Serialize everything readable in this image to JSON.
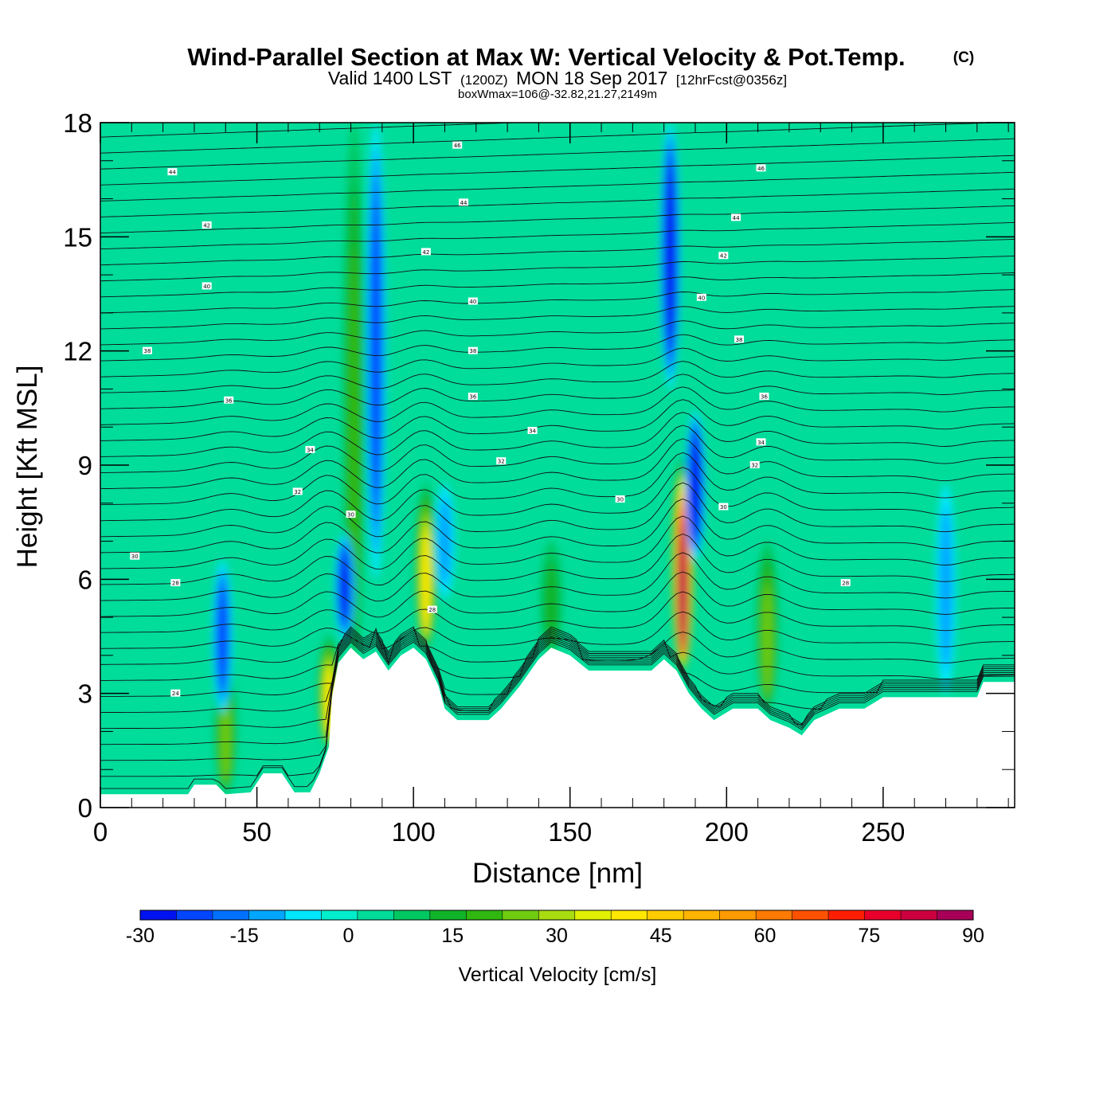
{
  "header": {
    "title": "Wind-Parallel Section at Max W: Vertical Velocity & Pot.Temp.",
    "copyright": "(C)",
    "valid_prefix": "Valid 1400 LST",
    "valid_utc": "(1200Z)",
    "valid_date": "MON 18 Sep 2017",
    "forecast": "[12hrFcst@0356z]",
    "box_note": "boxWmax=106@-32.82,21.27,2149m"
  },
  "chart_data": {
    "type": "heatmap",
    "xlabel": "Distance [nm]",
    "ylabel": "Height [Kft MSL]",
    "xlim": [
      0,
      292
    ],
    "ylim": [
      0,
      18
    ],
    "x_ticks": [
      0,
      50,
      100,
      150,
      200,
      250
    ],
    "y_ticks": [
      0,
      3,
      6,
      9,
      12,
      15,
      18
    ],
    "background_level": 0,
    "updrafts": [
      {
        "x": 40,
        "bottom": 0.4,
        "top": 3.8,
        "peak": 22
      },
      {
        "x": 73,
        "bottom": 1.6,
        "top": 4.5,
        "peak": 35
      },
      {
        "x": 81,
        "bottom": 3.8,
        "top": 18,
        "peak": 15
      },
      {
        "x": 104,
        "bottom": 4.2,
        "top": 8.5,
        "peak": 36
      },
      {
        "x": 144,
        "bottom": 4.0,
        "top": 7.0,
        "peak": 12
      },
      {
        "x": 186,
        "bottom": 3.6,
        "top": 9.2,
        "peak": 80
      },
      {
        "x": 213,
        "bottom": 2.6,
        "top": 7.0,
        "peak": 22
      }
    ],
    "downdrafts": [
      {
        "x": 39,
        "bottom": 2.5,
        "top": 6.5,
        "peak": -20
      },
      {
        "x": 78,
        "bottom": 4.4,
        "top": 7.2,
        "peak": -25
      },
      {
        "x": 88,
        "bottom": 6.0,
        "top": 18,
        "peak": -24
      },
      {
        "x": 110,
        "bottom": 5.5,
        "top": 8.5,
        "peak": -14
      },
      {
        "x": 182,
        "bottom": 11,
        "top": 18,
        "peak": -30
      },
      {
        "x": 190,
        "bottom": 6.5,
        "top": 10.4,
        "peak": -30
      },
      {
        "x": 270,
        "bottom": 3.0,
        "top": 8.5,
        "peak": -14
      }
    ],
    "terrain": [
      [
        0,
        0.35
      ],
      [
        28,
        0.35
      ],
      [
        30,
        0.6
      ],
      [
        37,
        0.6
      ],
      [
        40,
        0.35
      ],
      [
        48,
        0.4
      ],
      [
        52,
        0.9
      ],
      [
        58,
        0.9
      ],
      [
        62,
        0.4
      ],
      [
        67,
        0.4
      ],
      [
        70,
        0.9
      ],
      [
        73,
        1.6
      ],
      [
        74,
        2.9
      ],
      [
        76,
        3.8
      ],
      [
        80,
        4.2
      ],
      [
        84,
        3.9
      ],
      [
        88,
        4.1
      ],
      [
        92,
        3.6
      ],
      [
        96,
        4.0
      ],
      [
        100,
        4.2
      ],
      [
        104,
        3.9
      ],
      [
        108,
        3.2
      ],
      [
        110,
        2.6
      ],
      [
        114,
        2.3
      ],
      [
        124,
        2.3
      ],
      [
        128,
        2.6
      ],
      [
        134,
        3.2
      ],
      [
        140,
        3.9
      ],
      [
        144,
        4.2
      ],
      [
        150,
        4.0
      ],
      [
        156,
        3.6
      ],
      [
        176,
        3.6
      ],
      [
        180,
        3.9
      ],
      [
        184,
        3.6
      ],
      [
        188,
        3.0
      ],
      [
        192,
        2.6
      ],
      [
        196,
        2.3
      ],
      [
        202,
        2.6
      ],
      [
        210,
        2.6
      ],
      [
        214,
        2.3
      ],
      [
        220,
        2.1
      ],
      [
        224,
        1.9
      ],
      [
        228,
        2.3
      ],
      [
        236,
        2.6
      ],
      [
        244,
        2.6
      ],
      [
        250,
        2.9
      ],
      [
        280,
        2.9
      ],
      [
        282,
        3.3
      ],
      [
        292,
        3.3
      ]
    ],
    "theta_labels": [
      {
        "x": 23,
        "y": 16.7,
        "text": "44"
      },
      {
        "x": 34,
        "y": 15.3,
        "text": "42"
      },
      {
        "x": 34,
        "y": 13.7,
        "text": "40"
      },
      {
        "x": 15,
        "y": 12.0,
        "text": "38"
      },
      {
        "x": 41,
        "y": 10.7,
        "text": "36"
      },
      {
        "x": 67,
        "y": 9.4,
        "text": "34"
      },
      {
        "x": 63,
        "y": 8.3,
        "text": "32"
      },
      {
        "x": 11,
        "y": 6.6,
        "text": "30"
      },
      {
        "x": 24,
        "y": 5.9,
        "text": "28"
      },
      {
        "x": 24,
        "y": 3.0,
        "text": "24"
      },
      {
        "x": 80,
        "y": 7.7,
        "text": "30"
      },
      {
        "x": 106,
        "y": 5.2,
        "text": "28"
      },
      {
        "x": 114,
        "y": 17.4,
        "text": "46"
      },
      {
        "x": 116,
        "y": 15.9,
        "text": "44"
      },
      {
        "x": 104,
        "y": 14.6,
        "text": "42"
      },
      {
        "x": 119,
        "y": 13.3,
        "text": "40"
      },
      {
        "x": 119,
        "y": 12.0,
        "text": "38"
      },
      {
        "x": 119,
        "y": 10.8,
        "text": "36"
      },
      {
        "x": 138,
        "y": 9.9,
        "text": "34"
      },
      {
        "x": 128,
        "y": 9.1,
        "text": "32"
      },
      {
        "x": 166,
        "y": 8.1,
        "text": "30"
      },
      {
        "x": 211,
        "y": 16.8,
        "text": "46"
      },
      {
        "x": 203,
        "y": 15.5,
        "text": "44"
      },
      {
        "x": 199,
        "y": 14.5,
        "text": "42"
      },
      {
        "x": 192,
        "y": 13.4,
        "text": "40"
      },
      {
        "x": 204,
        "y": 12.3,
        "text": "38"
      },
      {
        "x": 212,
        "y": 10.8,
        "text": "36"
      },
      {
        "x": 211,
        "y": 9.6,
        "text": "34"
      },
      {
        "x": 209,
        "y": 9.0,
        "text": "32"
      },
      {
        "x": 199,
        "y": 7.9,
        "text": "30"
      },
      {
        "x": 238,
        "y": 5.9,
        "text": "28"
      }
    ]
  },
  "colorbar": {
    "title": "Vertical Velocity [cm/s]",
    "min": -30,
    "step": 5,
    "tick_labels": [
      "-30",
      "-15",
      "0",
      "15",
      "30",
      "45",
      "60",
      "75",
      "90"
    ],
    "colors": [
      "#0012f0",
      "#0046ff",
      "#0070ff",
      "#00a6ff",
      "#00e6ff",
      "#00eecc",
      "#00dc9a",
      "#00c860",
      "#10b428",
      "#30b810",
      "#70cc10",
      "#a8dc10",
      "#e0f000",
      "#ffe800",
      "#ffcc00",
      "#ffb400",
      "#ff9a00",
      "#ff7a00",
      "#ff5200",
      "#ff1e00",
      "#e8002a",
      "#cc0040",
      "#a80058"
    ]
  }
}
